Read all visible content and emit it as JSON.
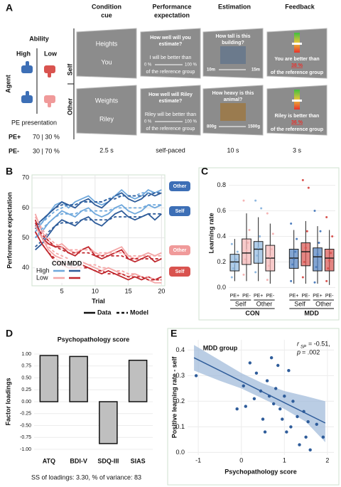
{
  "panel_labels": [
    "A",
    "B",
    "C",
    "D",
    "E"
  ],
  "panel_a": {
    "headers": [
      [
        "Condition",
        "cue"
      ],
      [
        "Performance",
        "expectation"
      ],
      [
        "Estimation"
      ],
      [
        "Feedback"
      ]
    ],
    "ability": "Ability",
    "high": "High",
    "low": "Low",
    "agent": "Agent",
    "self": "Self",
    "other": "Other",
    "pe_presentation": {
      "title": "PE presentation",
      "rows": [
        [
          "PE+",
          "70 | 30 %"
        ],
        [
          "PE-",
          "30 | 70 %"
        ]
      ]
    },
    "rows": [
      {
        "cue": [
          "Heights",
          "You"
        ],
        "expectation": [
          "How well will you",
          "estimate?",
          "I will be better than",
          "0 %",
          "100 %",
          "of the reference group"
        ],
        "estimation": [
          "How tall is this",
          "building?",
          "10m",
          "15m"
        ],
        "feedback": [
          "You are better than",
          "38 %",
          "of the reference group"
        ]
      },
      {
        "cue": [
          "Weights",
          "Riley"
        ],
        "expectation": [
          "How well will Riley",
          "estimate?",
          "Riley will be better than",
          "0 %",
          "100 %",
          "of the reference group"
        ],
        "estimation": [
          "How heavy is this",
          "animal?",
          "800g",
          "1500g"
        ],
        "feedback": [
          "Riley is better than",
          "36 %",
          "of the reference group"
        ]
      }
    ],
    "timings": [
      "2.5 s",
      "self-paced",
      "10 s",
      "3 s"
    ]
  },
  "chart_data": [
    {
      "type": "line",
      "y_label": "Performance expectation",
      "x_label": "Trial",
      "grid": true,
      "x": [
        1,
        2,
        3,
        4,
        5,
        6,
        7,
        8,
        9,
        10,
        11,
        12,
        13,
        14,
        15,
        16,
        17,
        18,
        19,
        20
      ],
      "xlim": [
        0.5,
        20.5
      ],
      "xticks": [
        5,
        10,
        15,
        20
      ],
      "ylim": [
        34,
        71
      ],
      "yticks": [
        40,
        50,
        60,
        70
      ],
      "legend": {
        "columns": [
          "CON",
          "MDD"
        ],
        "rows": [
          {
            "name": "High",
            "colors": [
              "#6fa8dc",
              "#2e5c9a"
            ]
          },
          {
            "name": "Low",
            "colors": [
              "#f4a6a6",
              "#c0272d"
            ]
          }
        ]
      },
      "line_styles": [
        {
          "name": "Data",
          "dash": false
        },
        {
          "name": "Model",
          "dash": true
        }
      ],
      "agent_labels": [
        "Other",
        "Self",
        "Other",
        "Self"
      ],
      "series": [
        {
          "color": "#6fa8dc",
          "dash": false,
          "values": [
            52,
            55,
            58,
            61,
            62,
            60,
            62,
            63,
            64,
            62,
            61,
            62,
            64,
            66,
            64,
            63,
            64,
            66,
            65,
            66
          ]
        },
        {
          "color": "#2e5c9a",
          "dash": false,
          "values": [
            54,
            56,
            58,
            60,
            62,
            61,
            60,
            62,
            63,
            61,
            60,
            62,
            64,
            65,
            63,
            62,
            63,
            65,
            64,
            65
          ]
        },
        {
          "color": "#6fa8dc",
          "dash": false,
          "values": [
            50,
            52,
            55,
            57,
            59,
            58,
            57,
            59,
            60,
            58,
            57,
            58,
            60,
            61,
            59,
            58,
            59,
            61,
            60,
            61
          ]
        },
        {
          "color": "#2e5c9a",
          "dash": false,
          "values": [
            46,
            48,
            51,
            54,
            56,
            55,
            54,
            56,
            57,
            55,
            54,
            56,
            58,
            59,
            57,
            56,
            57,
            58,
            56,
            58
          ]
        },
        {
          "color": "#f4a6a6",
          "dash": false,
          "values": [
            58,
            52,
            49,
            47,
            48,
            46,
            45,
            46,
            47,
            45,
            44,
            45,
            46,
            47,
            44,
            43,
            44,
            45,
            44,
            45
          ]
        },
        {
          "color": "#c0272d",
          "dash": false,
          "values": [
            56,
            50,
            48,
            47,
            47,
            45,
            44,
            46,
            47,
            44,
            43,
            44,
            45,
            46,
            43,
            42,
            43,
            44,
            42,
            43
          ]
        },
        {
          "color": "#f4a6a6",
          "dash": false,
          "values": [
            54,
            50,
            46,
            44,
            43,
            42,
            41,
            42,
            41,
            40,
            39,
            40,
            39,
            38,
            37,
            38,
            37,
            36,
            35,
            35
          ]
        },
        {
          "color": "#c0272d",
          "dash": false,
          "values": [
            52,
            48,
            45,
            42,
            41,
            40,
            40,
            41,
            40,
            39,
            38,
            39,
            38,
            37,
            36,
            37,
            36,
            37,
            36,
            37
          ]
        },
        {
          "color": "#6fa8dc",
          "dash": true,
          "values": [
            52,
            55,
            57,
            59,
            60,
            61,
            61,
            62,
            62,
            62,
            62,
            63,
            64,
            64,
            64,
            64,
            65,
            65,
            65,
            66
          ]
        },
        {
          "color": "#2e5c9a",
          "dash": true,
          "values": [
            53,
            56,
            58,
            60,
            61,
            61,
            61,
            62,
            62,
            62,
            62,
            63,
            63,
            64,
            64,
            64,
            64,
            64,
            65,
            65
          ]
        },
        {
          "color": "#6fa8dc",
          "dash": true,
          "values": [
            50,
            53,
            55,
            57,
            58,
            58,
            58,
            59,
            59,
            59,
            59,
            59,
            60,
            60,
            60,
            60,
            60,
            61,
            61,
            61
          ]
        },
        {
          "color": "#2e5c9a",
          "dash": true,
          "values": [
            47,
            49,
            52,
            54,
            55,
            55,
            55,
            56,
            56,
            56,
            56,
            56,
            57,
            57,
            57,
            57,
            57,
            58,
            58,
            58
          ]
        },
        {
          "color": "#f4a6a6",
          "dash": true,
          "values": [
            57,
            53,
            50,
            48,
            47,
            46,
            46,
            46,
            46,
            45,
            45,
            45,
            45,
            45,
            44,
            44,
            44,
            44,
            44,
            44
          ]
        },
        {
          "color": "#c0272d",
          "dash": true,
          "values": [
            55,
            51,
            49,
            47,
            46,
            45,
            45,
            45,
            45,
            44,
            44,
            44,
            44,
            44,
            43,
            43,
            43,
            43,
            43,
            43
          ]
        },
        {
          "color": "#f4a6a6",
          "dash": true,
          "values": [
            54,
            50,
            47,
            45,
            44,
            43,
            42,
            42,
            41,
            41,
            40,
            40,
            39,
            39,
            38,
            38,
            37,
            37,
            36,
            36
          ]
        },
        {
          "color": "#c0272d",
          "dash": true,
          "values": [
            52,
            48,
            45,
            43,
            42,
            41,
            40,
            40,
            40,
            39,
            39,
            38,
            38,
            38,
            37,
            37,
            37,
            36,
            36,
            36
          ]
        }
      ]
    },
    {
      "type": "box",
      "y_label": "Learning rate",
      "ylim": [
        -0.02,
        0.87
      ],
      "yticks": [
        {
          "value": 0,
          "label": "0.0"
        },
        {
          "value": 0.2,
          "label": "0.2"
        },
        {
          "value": 0.4,
          "label": "0.4"
        },
        {
          "value": 0.6,
          "label": "0.6"
        },
        {
          "value": 0.8,
          "label": "0.8"
        }
      ],
      "groups": [
        {
          "name": "CON",
          "agents": [
            {
              "name": "Self",
              "boxes": [
                {
                  "name": "PE+",
                  "color": "#8fb8e0",
                  "min": 0.05,
                  "q1": 0.13,
                  "median": 0.2,
                  "q3": 0.26,
                  "max": 0.38,
                  "points": [
                    0.08,
                    0.15,
                    0.19,
                    0.22,
                    0.28,
                    0.34
                  ]
                },
                {
                  "name": "PE-",
                  "color": "#f5b5b5",
                  "min": 0.05,
                  "q1": 0.18,
                  "median": 0.27,
                  "q3": 0.38,
                  "max": 0.58,
                  "points": [
                    0.1,
                    0.22,
                    0.29,
                    0.35,
                    0.45,
                    0.68
                  ]
                }
              ]
            },
            {
              "name": "Other",
              "boxes": [
                {
                  "name": "PE+",
                  "color": "#8fb8e0",
                  "min": 0.05,
                  "q1": 0.19,
                  "median": 0.3,
                  "q3": 0.36,
                  "max": 0.55,
                  "points": [
                    0.12,
                    0.25,
                    0.31,
                    0.4,
                    0.62,
                    0.68
                  ]
                },
                {
                  "name": "PE-",
                  "color": "#f5b5b5",
                  "min": 0.03,
                  "q1": 0.13,
                  "median": 0.23,
                  "q3": 0.33,
                  "max": 0.5,
                  "points": [
                    0.06,
                    0.17,
                    0.24,
                    0.3,
                    0.42,
                    0.58
                  ]
                }
              ]
            }
          ]
        },
        {
          "name": "MDD",
          "agents": [
            {
              "name": "Self",
              "boxes": [
                {
                  "name": "PE+",
                  "color": "#4f7fbf",
                  "min": 0.03,
                  "q1": 0.15,
                  "median": 0.23,
                  "q3": 0.3,
                  "max": 0.45,
                  "points": [
                    0.05,
                    0.18,
                    0.22,
                    0.28,
                    0.38,
                    0.5
                  ]
                },
                {
                  "name": "PE-",
                  "color": "#d9534f",
                  "min": 0.03,
                  "q1": 0.17,
                  "median": 0.28,
                  "q3": 0.35,
                  "max": 0.52,
                  "points": [
                    0.08,
                    0.2,
                    0.31,
                    0.44,
                    0.78,
                    0.84
                  ]
                }
              ]
            },
            {
              "name": "Other",
              "boxes": [
                {
                  "name": "PE+",
                  "color": "#4f7fbf",
                  "min": 0.03,
                  "q1": 0.13,
                  "median": 0.24,
                  "q3": 0.31,
                  "max": 0.48,
                  "points": [
                    0.04,
                    0.16,
                    0.26,
                    0.35,
                    0.44,
                    0.6
                  ]
                },
                {
                  "name": "PE-",
                  "color": "#d9534f",
                  "min": 0.02,
                  "q1": 0.13,
                  "median": 0.23,
                  "q3": 0.3,
                  "max": 0.45,
                  "points": [
                    0.05,
                    0.15,
                    0.21,
                    0.27,
                    0.4,
                    0.55
                  ]
                }
              ]
            }
          ]
        }
      ]
    },
    {
      "type": "bar",
      "title": "Psychopathology score",
      "y_label": "Factor loadings",
      "note": "SS of loadings: 3.30, % of variance: 83",
      "categories": [
        "ATQ",
        "BDI-V",
        "SDQ-III",
        "SIAS"
      ],
      "values": [
        0.97,
        0.95,
        -0.88,
        0.87
      ],
      "color": "#bfbfbf",
      "grid": true,
      "ylim": [
        -1.12,
        1.12
      ],
      "yticks": [
        {
          "value": -1,
          "label": "-1.00"
        },
        {
          "value": -0.75,
          "label": "-0.75"
        },
        {
          "value": -0.5,
          "label": "-0.50"
        },
        {
          "value": -0.25,
          "label": "-0.25"
        },
        {
          "value": 0,
          "label": "0.00"
        },
        {
          "value": 0.25,
          "label": "0.25"
        },
        {
          "value": 0.5,
          "label": "0.50"
        },
        {
          "value": 0.75,
          "label": "0.75"
        },
        {
          "value": 1,
          "label": "1.00"
        }
      ]
    },
    {
      "type": "scatter",
      "title": "MDD group",
      "x_label": "Psychopathology score",
      "y_label": "Positive learning rate - self",
      "stat": {
        "symbol": "r",
        "subscript": "SP",
        "value": "= -0.51,",
        "p_symbol": "p",
        "p_value": "= .002"
      },
      "color": "#2e5c9a",
      "band_color": "#9db8d9",
      "grid": true,
      "xlim": [
        -1.25,
        2.15
      ],
      "xticks": [
        -1,
        0,
        1,
        2
      ],
      "ylim": [
        -0.01,
        0.44
      ],
      "yticks": [
        {
          "value": 0,
          "label": "0.0"
        },
        {
          "value": 0.1,
          "label": "0.1"
        },
        {
          "value": 0.2,
          "label": "0.2"
        },
        {
          "value": 0.3,
          "label": "0.3"
        },
        {
          "value": 0.4,
          "label": "0.4"
        }
      ],
      "x": [
        -1.05,
        -0.1,
        0.05,
        0.1,
        0.2,
        0.3,
        0.35,
        0.45,
        0.5,
        0.55,
        0.6,
        0.65,
        0.7,
        0.75,
        0.8,
        0.85,
        0.9,
        0.95,
        1.0,
        1.05,
        1.1,
        1.15,
        1.2,
        1.3,
        1.35,
        1.45,
        1.5,
        1.55,
        1.6,
        1.75,
        1.9
      ],
      "values": [
        0.3,
        0.17,
        0.26,
        0.18,
        0.35,
        0.21,
        0.31,
        0.24,
        0.13,
        0.08,
        0.28,
        0.22,
        0.37,
        0.19,
        0.25,
        0.34,
        0.17,
        0.13,
        0.22,
        0.08,
        0.32,
        0.1,
        0.2,
        0.14,
        0.03,
        0.16,
        0.06,
        0.12,
        0.01,
        0.11,
        0.06
      ],
      "fit": {
        "x": [
          -1.1,
          1.95
        ],
        "y": [
          0.37,
          0.115
        ]
      },
      "band": {
        "x": [
          -1.1,
          -0.5,
          0,
          0.5,
          1,
          1.5,
          1.95
        ],
        "upper": [
          0.42,
          0.36,
          0.31,
          0.27,
          0.24,
          0.22,
          0.2
        ],
        "lower": [
          0.32,
          0.28,
          0.25,
          0.21,
          0.17,
          0.12,
          0.04
        ]
      }
    }
  ]
}
